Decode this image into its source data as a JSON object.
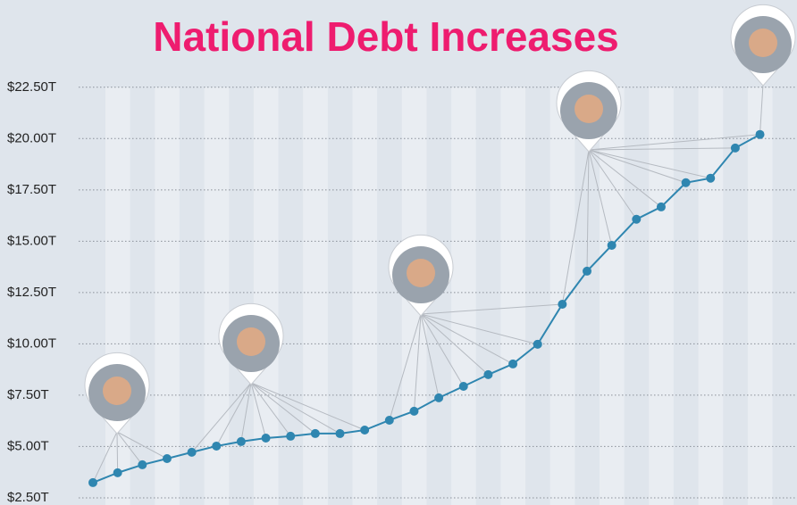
{
  "chart_data": {
    "type": "line",
    "title": "National Debt Increases",
    "categories": [
      null,
      null,
      null,
      null,
      null,
      null,
      null,
      null,
      null,
      null,
      null,
      null,
      null,
      null,
      null,
      null,
      null,
      null,
      null,
      null,
      null,
      null,
      null,
      null,
      null,
      null,
      null,
      null
    ],
    "values": [
      3.24,
      3.72,
      4.11,
      4.41,
      4.72,
      5.02,
      5.24,
      5.41,
      5.5,
      5.63,
      5.63,
      5.8,
      6.28,
      6.72,
      7.37,
      7.93,
      8.5,
      9.02,
      9.98,
      11.93,
      13.54,
      14.8,
      16.07,
      16.67,
      17.85,
      18.07,
      19.54,
      20.2
    ],
    "color": "#2f86b0",
    "ylim": [
      2.15,
      26.75
    ],
    "yticks": [
      {
        "value": 2.5,
        "label": "$2.50T"
      },
      {
        "value": 5,
        "label": "$5.00T"
      },
      {
        "value": 7.5,
        "label": "$7.50T"
      },
      {
        "value": 10,
        "label": "$10.00T"
      },
      {
        "value": 12.5,
        "label": "$12.50T"
      },
      {
        "value": 15,
        "label": "$15.00T"
      },
      {
        "value": 17.5,
        "label": "$17.50T"
      },
      {
        "value": 20,
        "label": "$20.00T"
      },
      {
        "value": 22.5,
        "label": "$22.50T"
      }
    ],
    "grid": true
  }
}
